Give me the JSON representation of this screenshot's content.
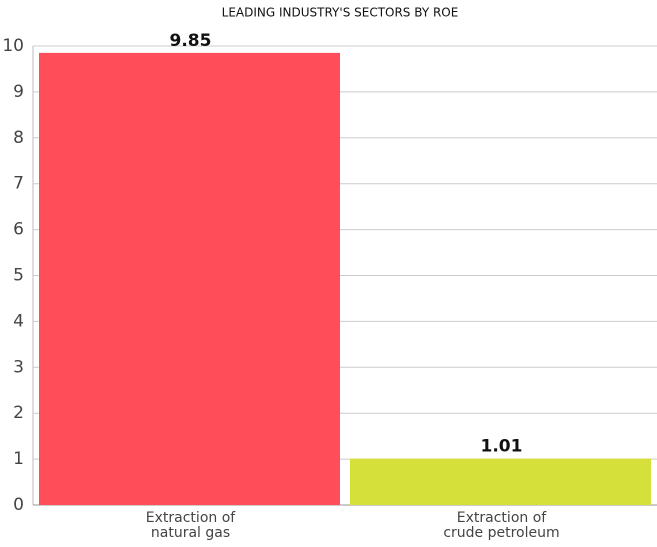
{
  "chart_data": {
    "type": "bar",
    "title": "LEADING INDUSTRY'S SECTORS BY ROE",
    "categories": [
      "Extraction of natural gas",
      "Extraction of crude petroleum"
    ],
    "values": [
      9.85,
      1.01
    ],
    "colors": [
      "#ff4d5a",
      "#d5e03a"
    ],
    "ylim": [
      0,
      10
    ],
    "yticks": [
      0,
      1,
      2,
      3,
      4,
      5,
      6,
      7,
      8,
      9,
      10
    ],
    "grid": true
  }
}
